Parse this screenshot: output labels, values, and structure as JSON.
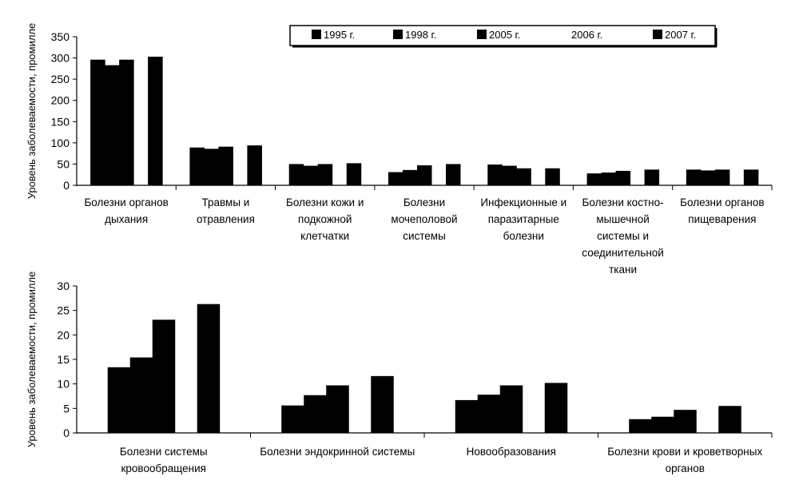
{
  "chart_data": [
    {
      "type": "bar",
      "ylabel": "Уровень заболеваемости, промилле",
      "ylim": [
        0,
        350
      ],
      "yticks": [
        0,
        50,
        100,
        150,
        200,
        250,
        300,
        350
      ],
      "grid": false,
      "legend_position": "top",
      "categories": [
        [
          "Болезни органов",
          "дыхания"
        ],
        [
          "Травмы и",
          "отравления"
        ],
        [
          "Болезни кожи и",
          "подкожной",
          "клетчатки"
        ],
        [
          "Болезни",
          "мочеполовой",
          "системы"
        ],
        [
          "Инфекционные и",
          "паразитарные",
          "болезни"
        ],
        [
          "Болезни костно-",
          "мышечной",
          "системы и",
          "соединительной",
          "ткани"
        ],
        [
          "Болезни органов",
          "пищеварения"
        ]
      ],
      "series": [
        {
          "name": "1995 г.",
          "values": [
            296,
            89,
            50,
            31,
            49,
            28,
            37
          ]
        },
        {
          "name": "1998 г.",
          "values": [
            283,
            86,
            46,
            36,
            46,
            30,
            35
          ]
        },
        {
          "name": "2005 г.",
          "values": [
            296,
            91,
            50,
            47,
            40,
            34,
            37
          ]
        },
        {
          "name": "2006 г.",
          "values": [
            null,
            null,
            null,
            null,
            null,
            null,
            null
          ]
        },
        {
          "name": "2007 г.",
          "values": [
            303,
            94,
            52,
            50,
            40,
            37,
            37
          ]
        }
      ]
    },
    {
      "type": "bar",
      "ylabel": "Уровень заболеваемости, промилле",
      "ylim": [
        0,
        30
      ],
      "yticks": [
        0,
        5,
        10,
        15,
        20,
        25,
        30
      ],
      "grid": false,
      "categories": [
        [
          "Болезни системы",
          "кровообращения"
        ],
        [
          "Болезни эндокринной системы"
        ],
        [
          "Новообразования"
        ],
        [
          "Болезни крови и кроветворных",
          "органов"
        ]
      ],
      "series": [
        {
          "name": "1995 г.",
          "values": [
            13.4,
            5.6,
            6.7,
            2.8
          ]
        },
        {
          "name": "1998 г.",
          "values": [
            15.4,
            7.7,
            7.8,
            3.3
          ]
        },
        {
          "name": "2005 г.",
          "values": [
            23.1,
            9.7,
            9.7,
            4.7
          ]
        },
        {
          "name": "2006 г.",
          "values": [
            null,
            null,
            null,
            null
          ]
        },
        {
          "name": "2007 г.",
          "values": [
            26.3,
            11.6,
            10.2,
            5.5
          ]
        }
      ]
    }
  ]
}
